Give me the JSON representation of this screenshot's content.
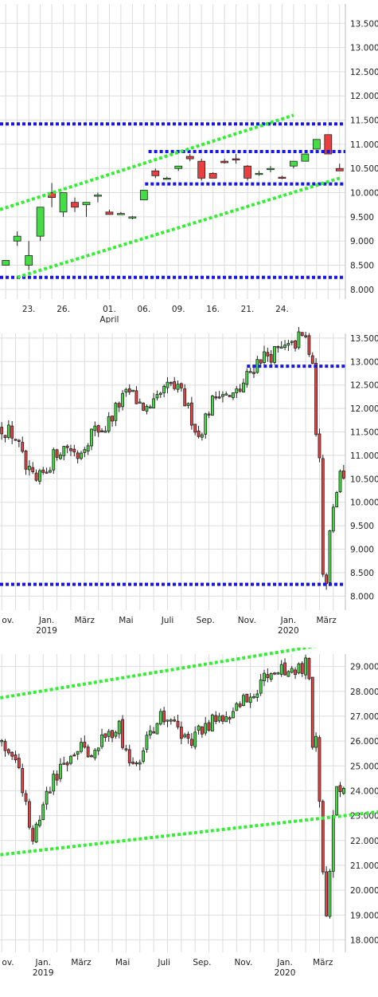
{
  "colors": {
    "up": "#44dd44",
    "down": "#e84040",
    "wick": "#222222",
    "support": "#1515ee",
    "trend": "#33ee33",
    "grid": "#dddddd"
  },
  "chart_data": [
    {
      "type": "candlestick",
      "ylim": [
        7.8,
        13.9
      ],
      "ticks": [
        "13.500",
        "13.000",
        "12.500",
        "12.000",
        "11.500",
        "11.000",
        "10.500",
        "10.000",
        "9.500",
        "9.000",
        "8.500",
        "8.000"
      ],
      "x_labels": [
        {
          "label": "23.",
          "i": 2
        },
        {
          "label": "26.",
          "i": 5
        },
        {
          "label": "01.",
          "sub": "April",
          "i": 9
        },
        {
          "label": "06.",
          "i": 12
        },
        {
          "label": "09.",
          "i": 15
        },
        {
          "label": "16.",
          "i": 18
        },
        {
          "label": "21.",
          "i": 21
        },
        {
          "label": "24.",
          "i": 24
        }
      ],
      "candles": [
        [
          8.5,
          8.6,
          8.5,
          8.6
        ],
        [
          9.0,
          9.2,
          8.9,
          9.1
        ],
        [
          8.5,
          9.0,
          8.4,
          8.7
        ],
        [
          9.1,
          9.7,
          9.0,
          9.7
        ],
        [
          10.0,
          10.2,
          9.7,
          9.9
        ],
        [
          9.6,
          10.0,
          9.5,
          10.0
        ],
        [
          9.8,
          9.9,
          9.6,
          9.7
        ],
        [
          9.75,
          9.8,
          9.5,
          9.8
        ],
        [
          9.95,
          10.0,
          9.8,
          9.95
        ],
        [
          9.6,
          9.65,
          9.55,
          9.55
        ],
        [
          9.57,
          9.6,
          9.55,
          9.57
        ],
        [
          9.5,
          9.52,
          9.45,
          9.5
        ],
        [
          9.85,
          10.05,
          9.85,
          10.05
        ],
        [
          10.45,
          10.5,
          10.3,
          10.35
        ],
        [
          10.3,
          10.33,
          10.28,
          10.3
        ],
        [
          10.5,
          10.55,
          10.45,
          10.55
        ],
        [
          10.75,
          10.8,
          10.65,
          10.7
        ],
        [
          10.65,
          10.7,
          10.25,
          10.3
        ],
        [
          10.4,
          10.42,
          10.3,
          10.3
        ],
        [
          10.65,
          10.7,
          10.6,
          10.62
        ],
        [
          10.7,
          10.8,
          10.6,
          10.68
        ],
        [
          10.55,
          10.57,
          10.25,
          10.3
        ],
        [
          10.4,
          10.45,
          10.35,
          10.4
        ],
        [
          10.48,
          10.55,
          10.42,
          10.5
        ],
        [
          10.32,
          10.35,
          10.28,
          10.3
        ],
        [
          10.55,
          10.65,
          10.5,
          10.65
        ],
        [
          10.65,
          10.8,
          10.65,
          10.8
        ],
        [
          10.9,
          11.1,
          10.9,
          11.1
        ],
        [
          11.2,
          11.2,
          10.8,
          10.8
        ],
        [
          10.5,
          10.6,
          10.45,
          10.45
        ]
      ],
      "hlines": [
        {
          "y": 11.42,
          "x0": 0.0,
          "x1": 1.0
        },
        {
          "y": 10.85,
          "x0": 0.43,
          "x1": 1.0
        },
        {
          "y": 10.18,
          "x0": 0.42,
          "x1": 1.0
        },
        {
          "y": 8.25,
          "x0": 0.0,
          "x1": 1.0
        }
      ],
      "trendlines": [
        {
          "x0": -0.5,
          "y0": 9.65,
          "x1": 25.0,
          "y1": 11.6
        },
        {
          "x0": 1.0,
          "y0": 8.25,
          "x1": 29.0,
          "y1": 10.3
        }
      ]
    },
    {
      "type": "candlestick",
      "ylim": [
        7.7,
        13.6
      ],
      "ticks": [
        "13.500",
        "13.000",
        "12.500",
        "12.000",
        "11.500",
        "11.000",
        "10.500",
        "10.000",
        "9.500",
        "9.000",
        "8.500",
        "8.000"
      ],
      "x_labels": [
        {
          "label": "ov.",
          "i": 0
        },
        {
          "label": "Jan.",
          "sub": "2019",
          "i": 13
        },
        {
          "label": "März",
          "i": 24
        },
        {
          "label": "Mai",
          "i": 36
        },
        {
          "label": "Juli",
          "i": 48
        },
        {
          "label": "Sep.",
          "i": 59
        },
        {
          "label": "Nov.",
          "i": 71
        },
        {
          "label": "Jan.",
          "sub": "2020",
          "i": 83
        },
        {
          "label": "März",
          "i": 94
        }
      ],
      "hlines": [
        {
          "y": 12.9,
          "x0": 0.715,
          "x1": 1.0
        },
        {
          "y": 8.25,
          "x0": 0.0,
          "x1": 1.0
        }
      ]
    },
    {
      "type": "candlestick",
      "ylim": [
        17.5,
        29.5
      ],
      "ticks": [
        "29.000",
        "28.000",
        "27.000",
        "26.000",
        "25.000",
        "24.000",
        "23.000",
        "22.000",
        "21.000",
        "20.000",
        "19.000",
        "18.000"
      ],
      "x_labels": [
        {
          "label": "ov.",
          "i": 0
        },
        {
          "label": "Jan.",
          "sub": "2019",
          "i": 12
        },
        {
          "label": "März",
          "i": 23
        },
        {
          "label": "Mai",
          "i": 35
        },
        {
          "label": "Juli",
          "i": 47
        },
        {
          "label": "Sep.",
          "i": 58
        },
        {
          "label": "Nov.",
          "i": 70
        },
        {
          "label": "Jan.",
          "sub": "2020",
          "i": 82
        },
        {
          "label": "März",
          "i": 93
        }
      ],
      "trendlines": [
        {
          "x0": -2.0,
          "y0": 27.7,
          "x1": 112.0,
          "y1": 30.3
        },
        {
          "x0": -2.0,
          "y0": 21.4,
          "x1": 112.0,
          "y1": 23.2
        }
      ]
    }
  ]
}
